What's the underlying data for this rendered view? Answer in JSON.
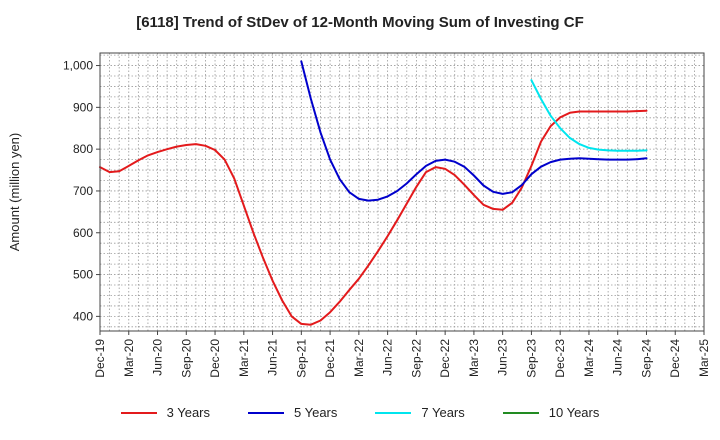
{
  "chart_data": {
    "type": "line",
    "title": "[6118]  Trend of StDev of 12-Month Moving Sum of Investing CF",
    "ylabel": "Amount (million yen)",
    "xlabel": "",
    "ylim": [
      365,
      1030
    ],
    "yticks": [
      400,
      500,
      600,
      700,
      800,
      900,
      1000
    ],
    "ytick_labels": [
      "400",
      "500",
      "600",
      "700",
      "800",
      "900",
      "1,000"
    ],
    "x_range": [
      "Dec-19",
      "Mar-25"
    ],
    "xtick_labels": [
      "Dec-19",
      "Mar-20",
      "Jun-20",
      "Sep-20",
      "Dec-20",
      "Mar-21",
      "Jun-21",
      "Sep-21",
      "Dec-21",
      "Mar-22",
      "Jun-22",
      "Sep-22",
      "Dec-22",
      "Mar-23",
      "Jun-23",
      "Sep-23",
      "Dec-23",
      "Mar-24",
      "Jun-24",
      "Sep-24",
      "Dec-24",
      "Mar-25"
    ],
    "grid": true,
    "legend_position": "bottom",
    "series": [
      {
        "name": "3 Years",
        "color": "#e31a1c",
        "x": [
          "Dec-19",
          "Jan-20",
          "Feb-20",
          "Mar-20",
          "Apr-20",
          "May-20",
          "Jun-20",
          "Jul-20",
          "Aug-20",
          "Sep-20",
          "Oct-20",
          "Nov-20",
          "Dec-20",
          "Jan-21",
          "Feb-21",
          "Mar-21",
          "Apr-21",
          "May-21",
          "Jun-21",
          "Jul-21",
          "Aug-21",
          "Sep-21",
          "Oct-21",
          "Nov-21",
          "Dec-21",
          "Jan-22",
          "Feb-22",
          "Mar-22",
          "Apr-22",
          "May-22",
          "Jun-22",
          "Jul-22",
          "Aug-22",
          "Sep-22",
          "Oct-22",
          "Nov-22",
          "Dec-22",
          "Jan-23",
          "Feb-23",
          "Mar-23",
          "Apr-23",
          "May-23",
          "Jun-23",
          "Jul-23",
          "Aug-23",
          "Sep-23",
          "Oct-23",
          "Nov-23",
          "Dec-23",
          "Jan-24",
          "Feb-24",
          "Mar-24",
          "Apr-24",
          "May-24",
          "Jun-24",
          "Jul-24",
          "Aug-24",
          "Sep-24"
        ],
        "values": [
          757,
          745,
          747,
          760,
          773,
          785,
          793,
          800,
          806,
          810,
          812,
          808,
          798,
          775,
          730,
          665,
          600,
          540,
          485,
          438,
          400,
          382,
          380,
          390,
          410,
          435,
          463,
          490,
          522,
          556,
          592,
          630,
          670,
          710,
          745,
          757,
          753,
          738,
          715,
          690,
          667,
          657,
          655,
          672,
          708,
          760,
          818,
          855,
          876,
          887,
          890,
          890,
          890,
          890,
          890,
          890,
          891,
          892
        ],
        "note": "values approximate, read from gridlines"
      },
      {
        "name": "5 Years",
        "color": "#0000cc",
        "x": [
          "Sep-21",
          "Oct-21",
          "Nov-21",
          "Dec-21",
          "Jan-22",
          "Feb-22",
          "Mar-22",
          "Apr-22",
          "May-22",
          "Jun-22",
          "Jul-22",
          "Aug-22",
          "Sep-22",
          "Oct-22",
          "Nov-22",
          "Dec-22",
          "Jan-23",
          "Feb-23",
          "Mar-23",
          "Apr-23",
          "May-23",
          "Jun-23",
          "Jul-23",
          "Aug-23",
          "Sep-23",
          "Oct-23",
          "Nov-23",
          "Dec-23",
          "Jan-24",
          "Feb-24",
          "Mar-24",
          "Apr-24",
          "May-24",
          "Jun-24",
          "Jul-24",
          "Aug-24",
          "Sep-24"
        ],
        "values": [
          1010,
          920,
          840,
          775,
          728,
          697,
          681,
          677,
          679,
          687,
          700,
          718,
          740,
          760,
          772,
          775,
          770,
          758,
          737,
          713,
          698,
          693,
          697,
          714,
          740,
          758,
          769,
          775,
          777,
          778,
          777,
          776,
          775,
          775,
          775,
          776,
          778
        ]
      },
      {
        "name": "7 Years",
        "color": "#00e5ee",
        "x": [
          "Sep-23",
          "Oct-23",
          "Nov-23",
          "Dec-23",
          "Jan-24",
          "Feb-24",
          "Mar-24",
          "Apr-24",
          "May-24",
          "Jun-24",
          "Jul-24",
          "Aug-24",
          "Sep-24"
        ],
        "values": [
          965,
          920,
          880,
          850,
          827,
          812,
          803,
          799,
          797,
          796,
          796,
          796,
          797
        ]
      },
      {
        "name": "10 Years",
        "color": "#228b22",
        "x": [],
        "values": []
      }
    ]
  }
}
